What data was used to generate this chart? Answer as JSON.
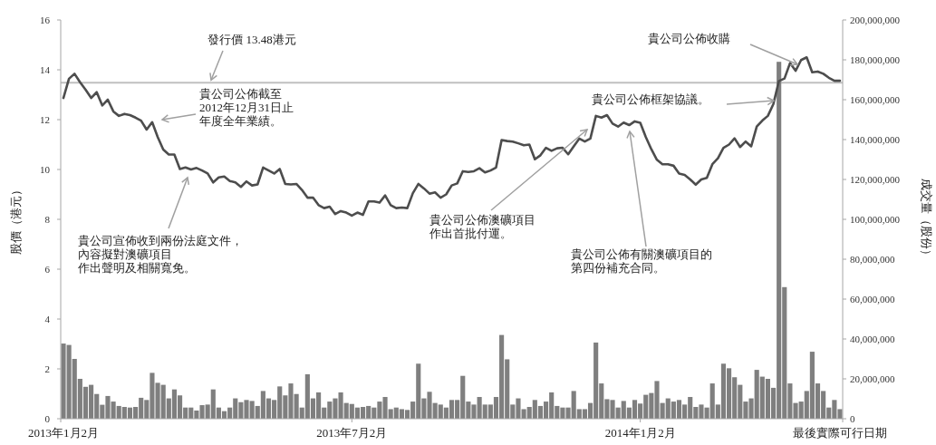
{
  "chart_data": {
    "type": "line",
    "ylabel": "股價（港元）",
    "y2label": "成交量（股份）",
    "categories": [
      "2013年1月2月",
      null,
      null,
      null,
      null,
      null,
      null,
      null,
      null,
      null,
      null,
      null,
      null,
      null,
      null,
      null,
      null,
      null,
      null,
      null,
      null,
      null,
      null,
      null,
      null,
      null,
      null,
      null,
      null,
      null,
      null,
      null,
      null,
      null,
      null,
      null,
      null,
      null,
      null,
      null,
      null,
      null,
      null,
      null,
      null,
      null,
      null,
      null,
      null,
      null,
      null,
      null,
      "2013年7月2月",
      null,
      null,
      null,
      null,
      null,
      null,
      null,
      null,
      null,
      null,
      null,
      null,
      null,
      null,
      null,
      null,
      null,
      null,
      null,
      null,
      null,
      null,
      null,
      null,
      null,
      null,
      null,
      null,
      null,
      null,
      null,
      null,
      null,
      null,
      null,
      null,
      null,
      null,
      null,
      null,
      null,
      null,
      null,
      null,
      null,
      null,
      null,
      null,
      null,
      null,
      null,
      "2014年1月2月",
      null,
      null,
      null,
      null,
      null,
      null,
      null,
      null,
      null,
      null,
      null,
      null,
      null,
      null,
      null,
      null,
      null,
      null,
      null,
      null,
      null,
      null,
      null,
      null,
      null,
      null,
      null,
      null,
      null,
      null,
      null,
      null,
      null,
      null,
      null,
      "最後實際可行日期"
    ],
    "series": [
      {
        "type": "bar",
        "axis": "y2",
        "color": "#7f7f7f",
        "values": [
          37700000,
          37000000,
          30000000,
          20000000,
          16000000,
          17000000,
          12400000,
          7000000,
          11400000,
          8600000,
          6400000,
          5900000,
          5600000,
          5900000,
          10500000,
          9400000,
          23000000,
          18000000,
          17000000,
          10200000,
          14700000,
          11700000,
          5600000,
          5600000,
          4100000,
          6800000,
          7100000,
          14700000,
          5600000,
          3800000,
          5600000,
          10200000,
          8300000,
          9400000,
          8900000,
          6400000,
          13900000,
          10200000,
          9400000,
          16200000,
          11700000,
          17700000,
          12400000,
          5600000,
          22300000,
          10200000,
          13200000,
          5600000,
          8600000,
          10200000,
          13200000,
          7900000,
          7400000,
          5600000,
          5900000,
          6400000,
          5600000,
          8600000,
          10900000,
          4800000,
          5600000,
          4800000,
          4400000,
          8600000,
          27600000,
          10200000,
          13500000,
          7900000,
          7100000,
          5600000,
          9400000,
          9400000,
          21500000,
          8600000,
          7100000,
          10900000,
          7100000,
          7100000,
          10900000,
          42000000,
          29800000,
          7100000,
          10200000,
          4800000,
          5900000,
          9400000,
          6400000,
          8600000,
          13200000,
          6400000,
          5600000,
          5600000,
          13900000,
          4800000,
          4800000,
          7900000,
          38200000,
          17700000,
          9800000,
          9400000,
          5600000,
          8900000,
          5600000,
          9400000,
          7600000,
          12000000,
          12900000,
          18900000,
          7900000,
          10200000,
          8600000,
          9400000,
          7100000,
          10900000,
          5900000,
          7100000,
          5600000,
          17700000,
          7100000,
          27600000,
          25300000,
          20800000,
          17000000,
          8600000,
          10200000,
          24500000,
          21100000,
          20000000,
          15500000,
          179000000,
          66000000,
          17700000,
          7900000,
          8600000,
          13900000,
          33600000,
          17700000,
          13900000,
          5600000,
          9400000,
          4800000
        ]
      },
      {
        "axis": "y",
        "color": "#4d4d4d",
        "values": [
          12.87,
          13.64,
          13.84,
          13.5,
          13.2,
          12.87,
          13.1,
          12.57,
          12.8,
          12.33,
          12.15,
          12.23,
          12.18,
          12.08,
          11.96,
          11.6,
          11.9,
          11.3,
          10.8,
          10.6,
          10.6,
          10.02,
          10.08,
          10.0,
          10.06,
          9.96,
          9.84,
          9.48,
          9.68,
          9.72,
          9.54,
          9.48,
          9.3,
          9.52,
          9.36,
          9.4,
          10.08,
          9.96,
          9.84,
          10.02,
          9.42,
          9.4,
          9.42,
          9.18,
          8.87,
          8.87,
          8.57,
          8.45,
          8.51,
          8.21,
          8.33,
          8.27,
          8.15,
          8.27,
          8.18,
          8.72,
          8.72,
          8.67,
          8.96,
          8.57,
          8.45,
          8.47,
          8.45,
          9.05,
          9.42,
          9.24,
          9.03,
          9.08,
          8.87,
          9.0,
          9.36,
          9.44,
          9.93,
          9.9,
          9.93,
          10.05,
          9.88,
          9.96,
          10.08,
          11.18,
          11.14,
          11.12,
          11.05,
          10.97,
          11.0,
          10.41,
          10.57,
          10.87,
          10.75,
          10.85,
          10.87,
          10.61,
          10.93,
          11.24,
          11.12,
          11.24,
          12.15,
          12.08,
          12.18,
          11.84,
          11.72,
          11.88,
          11.78,
          11.93,
          11.87,
          11.3,
          10.81,
          10.39,
          10.21,
          10.21,
          10.15,
          9.84,
          9.78,
          9.6,
          9.39,
          9.6,
          9.66,
          10.21,
          10.45,
          10.87,
          11.0,
          11.25,
          10.9,
          11.12,
          10.93,
          11.72,
          11.96,
          12.15,
          12.63,
          13.55,
          13.65,
          14.27,
          13.96,
          14.39,
          14.5,
          13.9,
          13.93,
          13.84,
          13.68,
          13.56,
          13.56
        ]
      }
    ],
    "ylim": [
      0,
      16
    ],
    "yticks": [
      0,
      2,
      4,
      6,
      8,
      10,
      12,
      14,
      16
    ],
    "y2lim": [
      0,
      200000000
    ],
    "y2ticks": [
      0,
      {
        "value": 20000000,
        "label": "20,000,000"
      },
      {
        "value": 40000000,
        "label": "40,000,000"
      },
      {
        "value": 60000000,
        "label": "60,000,000"
      },
      {
        "value": 80000000,
        "label": "80,000,000"
      },
      {
        "value": 100000000,
        "label": "100,000,000"
      },
      {
        "value": 120000000,
        "label": "120,000,000"
      },
      {
        "value": 140000000,
        "label": "140,000,000"
      },
      {
        "value": 160000000,
        "label": "160,000,000"
      },
      {
        "value": 180000000,
        "label": "180,000,000"
      },
      {
        "value": 200000000,
        "label": "200,000,000"
      }
    ],
    "ref_lines": [
      {
        "axis": "y",
        "value": 13.48,
        "label": "發行價 13.48港元",
        "color": "#c0c0c0"
      }
    ],
    "annotations": [
      "貴公司公佈截至2012年12月31日止年度全年業績。",
      "貴公司宣佈收到兩份法庭文件，內容擬對澳礦項目作出聲明及相關寬免。",
      "貴公司公佈澳礦項目作出首批付運。",
      "貴公司公佈有關澳礦項目的第四份補充合同。",
      "貴公司公佈框架協議。",
      "貴公司公佈收購"
    ]
  }
}
